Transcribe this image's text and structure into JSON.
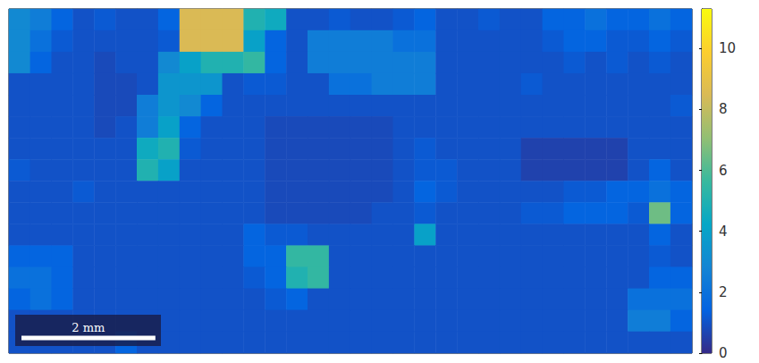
{
  "chart_data": {
    "type": "heatmap",
    "tick_labels": false,
    "xlim": [
      0,
      10.2
    ],
    "scale_bar": {
      "label": "2 mm",
      "length": 2
    },
    "colorbar_lim": [
      0,
      11.3
    ],
    "colorbar_ticks": [
      0,
      2,
      4,
      6,
      8,
      10
    ],
    "cells": [
      [
        3,
        2.5,
        1.5,
        1,
        1.2,
        1,
        1,
        1.5,
        8.5,
        8.5,
        8.5,
        5,
        4.5,
        1,
        1,
        1.2,
        1,
        1,
        1.2,
        1.5,
        1,
        1,
        1.2,
        1,
        1,
        1.5,
        1.5,
        2,
        1.5,
        1.5,
        2,
        1.5
      ],
      [
        3,
        2,
        1.2,
        1,
        1,
        1,
        1,
        1.2,
        8.5,
        8.5,
        8.5,
        4,
        1.5,
        1,
        2.5,
        2.5,
        2.5,
        2.5,
        2,
        2,
        1,
        1,
        1,
        1,
        1,
        1.2,
        1.5,
        1.5,
        1.2,
        1.2,
        1.5,
        1.2
      ],
      [
        3,
        1.5,
        1,
        1,
        0.8,
        1,
        1,
        3,
        4,
        5,
        5,
        5.5,
        1.5,
        1,
        2.5,
        2.5,
        2.5,
        2.5,
        2.5,
        2.5,
        1,
        1,
        1,
        1,
        1,
        1,
        1.2,
        1,
        1.2,
        1,
        1.2,
        1
      ],
      [
        1,
        1,
        1,
        1,
        0.8,
        0.8,
        1,
        3.5,
        3.5,
        3.5,
        1,
        1.2,
        1.2,
        1,
        1,
        2,
        2,
        2.5,
        2.5,
        2.5,
        1,
        1,
        1,
        1,
        1.2,
        1,
        1,
        1,
        1,
        1,
        1,
        1
      ],
      [
        1,
        1,
        1,
        1,
        0.8,
        0.8,
        2.5,
        3.5,
        3,
        1.5,
        1,
        1,
        1,
        1,
        1,
        1,
        1,
        1,
        1,
        1,
        1,
        1,
        1,
        1,
        1,
        1,
        1,
        1,
        1,
        1,
        1,
        1.2
      ],
      [
        1,
        1,
        1,
        1,
        0.8,
        1,
        2.5,
        4,
        1.5,
        1,
        1,
        1,
        0.8,
        0.8,
        0.8,
        0.8,
        0.8,
        0.8,
        1,
        1,
        1,
        1,
        1,
        1,
        1,
        1,
        1,
        1,
        1,
        1,
        1,
        1
      ],
      [
        1,
        1,
        1,
        1,
        1,
        1,
        4.5,
        5,
        1.2,
        1,
        1,
        1,
        0.8,
        0.8,
        0.8,
        0.8,
        0.8,
        0.8,
        1,
        1.2,
        1,
        1,
        1,
        1,
        0.6,
        0.6,
        0.6,
        0.6,
        0.6,
        1,
        1,
        1
      ],
      [
        1.2,
        1,
        1,
        1,
        1,
        1,
        5,
        4,
        1,
        1,
        1,
        1,
        0.8,
        0.8,
        0.8,
        0.8,
        0.8,
        0.8,
        1,
        1.2,
        1.2,
        1,
        1,
        1,
        0.6,
        0.6,
        0.6,
        0.6,
        0.6,
        1,
        1.5,
        1
      ],
      [
        1,
        1,
        1,
        1.2,
        1,
        1,
        1,
        1,
        1,
        1,
        1,
        1,
        0.8,
        0.8,
        0.8,
        0.8,
        0.8,
        0.8,
        1,
        1.5,
        1.2,
        1,
        1,
        1,
        1,
        1,
        1.2,
        1.2,
        1.5,
        1.5,
        2,
        1.5
      ],
      [
        1,
        1,
        1,
        1,
        1,
        1,
        1,
        1,
        1,
        1,
        1,
        1,
        0.8,
        0.8,
        0.8,
        0.8,
        0.8,
        1,
        1,
        1.2,
        1,
        1,
        1,
        1,
        1.2,
        1.2,
        1.5,
        1.5,
        1.5,
        1.2,
        6.5,
        1.5
      ],
      [
        1,
        1,
        1,
        1,
        1,
        1,
        1,
        1,
        1,
        1,
        1,
        1.5,
        1.2,
        1.2,
        1,
        1,
        1,
        1,
        1,
        4,
        1,
        1,
        1,
        1,
        1,
        1,
        1,
        1,
        1,
        1,
        1.5,
        1
      ],
      [
        1.5,
        1.5,
        1.5,
        1,
        1,
        1,
        1,
        1,
        1,
        1,
        1,
        1.5,
        1.5,
        5.5,
        5.5,
        1,
        1,
        1,
        1,
        1,
        1,
        1,
        1,
        1,
        1,
        1,
        1,
        1,
        1,
        1,
        1.2,
        1
      ],
      [
        2,
        2,
        1.5,
        1,
        1,
        1,
        1,
        1,
        1,
        1,
        1,
        1.2,
        1.5,
        5,
        5.5,
        1,
        1,
        1,
        1,
        1,
        1,
        1,
        1,
        1,
        1,
        1,
        1,
        1,
        1,
        1,
        1.5,
        1.5
      ],
      [
        1.5,
        2,
        1.5,
        1,
        1,
        1,
        1,
        1,
        1,
        1,
        1,
        1,
        1.2,
        1.5,
        1,
        1,
        1,
        1,
        1,
        1,
        1,
        1,
        1,
        1,
        1,
        1,
        1,
        1,
        1,
        2,
        2,
        2
      ],
      [
        1,
        1,
        1,
        1,
        1,
        1,
        1,
        1,
        1,
        1,
        1,
        1,
        1,
        1,
        1,
        1,
        1,
        1,
        1,
        1,
        1,
        1,
        1,
        1,
        1,
        1,
        1,
        1,
        1,
        2.5,
        2.5,
        1.5
      ],
      [
        1,
        1,
        1,
        1,
        1,
        1.5,
        1,
        1,
        1,
        1,
        1,
        1,
        1,
        1,
        1,
        1,
        1,
        1,
        1,
        1,
        1,
        1,
        1,
        1,
        1,
        1,
        1,
        1,
        1,
        1,
        1,
        1
      ]
    ]
  }
}
